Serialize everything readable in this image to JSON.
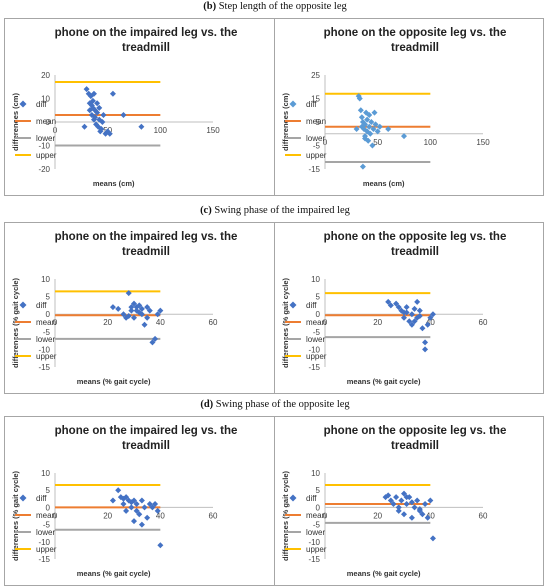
{
  "captions": [
    {
      "letter": "(b)",
      "text": " Step length of the opposite leg"
    },
    {
      "letter": "(c)",
      "text": " Swing phase of the impaired leg"
    },
    {
      "letter": "(d)",
      "text": " Swing phase of the opposite leg"
    }
  ],
  "colors": {
    "diff": "#4472c4",
    "diff_light": "#5b9bd5",
    "mean": "#ed7d31",
    "lower": "#a5a5a5",
    "upper": "#ffc000"
  },
  "legend": [
    "diff",
    "mean",
    "lower",
    "upper"
  ],
  "chart_data": [
    {
      "type": "scatter",
      "title_lines": [
        "phone on the impaired leg vs. the",
        "treadmill"
      ],
      "xlabel": "means (cm)",
      "ylabel": "differences (cm)",
      "xlim": [
        0,
        150
      ],
      "ylim": [
        -20,
        20
      ],
      "xticks": [
        "0",
        "50",
        "100",
        "150"
      ],
      "yticks": [
        "20",
        "10",
        "0",
        "-10",
        "-20"
      ],
      "series": [
        {
          "name": "diff",
          "x": [
            30,
            32,
            33,
            33,
            34,
            35,
            35,
            36,
            36,
            37,
            37,
            38,
            38,
            39,
            40,
            40,
            41,
            42,
            42,
            43,
            44,
            45,
            46,
            48,
            50,
            52,
            55,
            65,
            82,
            28
          ],
          "y": [
            14,
            12,
            8,
            5,
            11,
            7,
            3,
            9,
            6,
            1,
            12,
            2,
            5,
            -1,
            8,
            4,
            -2,
            1,
            6,
            -4,
            -3,
            0,
            3,
            -5,
            -4,
            -5,
            12,
            3,
            -2,
            -2
          ]
        },
        {
          "name": "mean",
          "value": 3
        },
        {
          "name": "lower",
          "value": -10
        },
        {
          "name": "upper",
          "value": 17
        }
      ]
    },
    {
      "type": "scatter",
      "title_lines": [
        "phone on the opposite leg vs. the",
        "treadmill"
      ],
      "xlabel": "means (cm)",
      "ylabel": "differences (cm)",
      "xlim": [
        0,
        150
      ],
      "ylim": [
        -15,
        25
      ],
      "xticks": [
        "0",
        "50",
        "100",
        "150"
      ],
      "yticks": [
        "25",
        "15",
        "5",
        "-5",
        "-15"
      ],
      "series": [
        {
          "name": "diff",
          "x": [
            32,
            33,
            34,
            35,
            35,
            36,
            37,
            38,
            38,
            39,
            40,
            40,
            41,
            42,
            43,
            44,
            45,
            46,
            47,
            48,
            50,
            52,
            36,
            60,
            75,
            38,
            30,
            42
          ],
          "y": [
            16,
            15,
            10,
            7,
            3,
            5,
            2,
            -1,
            4,
            9,
            1,
            6,
            -3,
            3,
            0,
            5,
            -5,
            2,
            9,
            4,
            1,
            3,
            -14,
            2,
            -1,
            -2,
            2,
            8
          ]
        },
        {
          "name": "mean",
          "value": 3
        },
        {
          "name": "lower",
          "value": -12
        },
        {
          "name": "upper",
          "value": 17
        }
      ]
    },
    {
      "type": "scatter",
      "title_lines": [
        "phone on the impaired leg vs. the",
        "treadmill"
      ],
      "xlabel": "means (% gait cycle)",
      "ylabel": "differences (% gait cycle)",
      "xlim": [
        0,
        60
      ],
      "ylim": [
        -15,
        10
      ],
      "xticks": [
        "0",
        "20",
        "40",
        "60"
      ],
      "yticks": [
        "10",
        "5",
        "0",
        "-5",
        "-10",
        "-15"
      ],
      "series": [
        {
          "name": "diff",
          "x": [
            22,
            24,
            26,
            27,
            28,
            29,
            29,
            30,
            30,
            31,
            31,
            32,
            32,
            33,
            33,
            34,
            35,
            35,
            36,
            37,
            38,
            39,
            40,
            28
          ],
          "y": [
            2,
            1.5,
            0,
            -1,
            6,
            1,
            2,
            3,
            -1,
            2,
            1,
            0.5,
            2.5,
            1.5,
            0,
            -3,
            2,
            -1,
            1,
            -8,
            -7,
            0,
            1,
            -0.5
          ]
        },
        {
          "name": "mean",
          "value": -0.3
        },
        {
          "name": "lower",
          "value": -7
        },
        {
          "name": "upper",
          "value": 6.5
        }
      ]
    },
    {
      "type": "scatter",
      "title_lines": [
        "phone on the opposite leg vs. the",
        "treadmill"
      ],
      "xlabel": "means (% gait cycle)",
      "ylabel": "differences (% gait cycle)",
      "xlim": [
        0,
        60
      ],
      "ylim": [
        -15,
        10
      ],
      "xticks": [
        "0",
        "20",
        "40",
        "60"
      ],
      "yticks": [
        "10",
        "5",
        "0",
        "-5",
        "-10",
        "-15"
      ],
      "series": [
        {
          "name": "diff",
          "x": [
            24,
            25,
            27,
            28,
            29,
            30,
            30,
            31,
            32,
            33,
            33,
            34,
            35,
            35,
            36,
            37,
            38,
            38,
            39,
            40,
            41,
            36,
            34,
            31
          ],
          "y": [
            3.5,
            2.5,
            3,
            2,
            1,
            -1,
            0.5,
            2,
            -2,
            0,
            -3,
            1.5,
            -1,
            3.5,
            -0.5,
            -4,
            -8,
            -10,
            -3,
            -1,
            0,
            1,
            -2,
            0.5
          ]
        },
        {
          "name": "mean",
          "value": -0.3
        },
        {
          "name": "lower",
          "value": -6.5
        },
        {
          "name": "upper",
          "value": 6
        }
      ]
    },
    {
      "type": "scatter",
      "title_lines": [
        "phone on the impaired leg vs. the",
        "treadmill"
      ],
      "xlabel": "means (% gait cycle)",
      "ylabel": "differences (% gait cycle)",
      "xlim": [
        0,
        60
      ],
      "ylim": [
        -15,
        10
      ],
      "xticks": [
        "0",
        "20",
        "40",
        "60"
      ],
      "yticks": [
        "10",
        "5",
        "0",
        "-5",
        "-10",
        "-15"
      ],
      "series": [
        {
          "name": "diff",
          "x": [
            22,
            24,
            25,
            26,
            27,
            27,
            28,
            29,
            30,
            30,
            31,
            32,
            33,
            33,
            34,
            35,
            36,
            37,
            38,
            39,
            40,
            26,
            29,
            31
          ],
          "y": [
            2,
            5,
            3,
            1,
            -1,
            3,
            2,
            0,
            -4,
            2,
            1,
            -2,
            2,
            -5,
            0,
            -3,
            1,
            0,
            1,
            -1,
            -11,
            2.5,
            1.5,
            -1
          ]
        },
        {
          "name": "mean",
          "value": 0
        },
        {
          "name": "lower",
          "value": -6.5
        },
        {
          "name": "upper",
          "value": 6.5
        }
      ]
    },
    {
      "type": "scatter",
      "title_lines": [
        "phone on the opposite leg vs. the",
        "treadmill"
      ],
      "xlabel": "means (% gait cycle)",
      "ylabel": "differences (% gait cycle)",
      "xlim": [
        0,
        60
      ],
      "ylim": [
        -15,
        10
      ],
      "xticks": [
        "0",
        "20",
        "40",
        "60"
      ],
      "yticks": [
        "10",
        "5",
        "0",
        "-5",
        "-10",
        "-15"
      ],
      "series": [
        {
          "name": "diff",
          "x": [
            23,
            24,
            25,
            26,
            27,
            28,
            29,
            30,
            30,
            31,
            32,
            33,
            34,
            35,
            36,
            37,
            38,
            39,
            40,
            41,
            28,
            33,
            36,
            31
          ],
          "y": [
            3,
            3.5,
            2,
            1,
            3,
            0,
            2,
            4,
            -2,
            1,
            3,
            -3,
            0,
            2,
            -1,
            -2,
            1,
            -3,
            2,
            -9,
            -1,
            1.5,
            -0.5,
            3
          ]
        },
        {
          "name": "mean",
          "value": 1
        },
        {
          "name": "lower",
          "value": -4.5
        },
        {
          "name": "upper",
          "value": 6.5
        }
      ]
    }
  ]
}
